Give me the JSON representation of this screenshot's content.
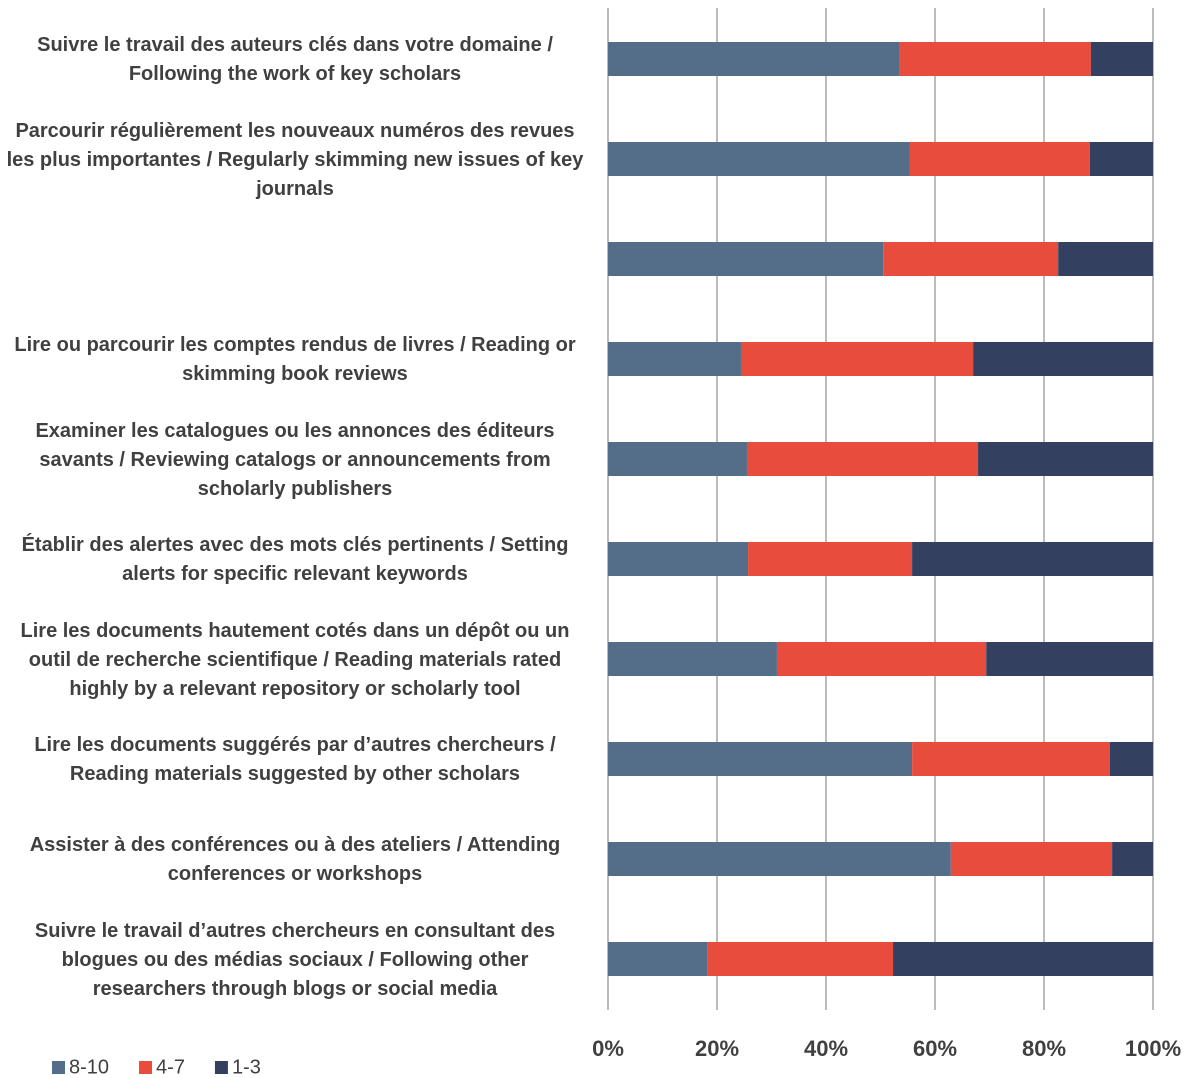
{
  "chart_data": {
    "type": "stacked_bar_horizontal",
    "categories": [
      "Suivre le travail des auteurs clés dans votre domaine / Following the work of key scholars",
      "Parcourir régulièrement les nouveaux numéros des revues les plus importantes / Regularly skimming new issues of key journals",
      null,
      "Lire ou parcourir les comptes rendus de livres / Reading or skimming book reviews",
      "Examiner les catalogues ou les annonces des éditeurs savants / Reviewing catalogs or announcements from scholarly publishers",
      "Établir des alertes avec des mots clés pertinents / Setting alerts for specific relevant keywords",
      "Lire les documents hautement cotés dans un dépôt ou un outil de recherche scientifique / Reading materials rated highly by a relevant repository or scholarly tool",
      "Lire les documents suggérés par d’autres chercheurs / Reading materials suggested by other scholars",
      "Assister à des conférences ou à des ateliers / Attending conferences or workshops",
      "Suivre le travail d’autres chercheurs en consultant des blogues ou des médias sociaux / Following other researchers through blogs or social media"
    ],
    "series": [
      {
        "name": "8-10",
        "color": "#546e8a",
        "values": [
          53.4,
          55.4,
          50.5,
          24.4,
          25.5,
          25.7,
          31.0,
          55.8,
          62.9,
          18.3
        ]
      },
      {
        "name": "4-7",
        "color": "#e84c3d",
        "values": [
          35.2,
          33.0,
          32.1,
          42.6,
          42.4,
          30.1,
          38.4,
          36.3,
          29.6,
          34.0
        ]
      },
      {
        "name": "1-3",
        "color": "#344060",
        "values": [
          11.4,
          11.6,
          17.4,
          33.0,
          32.1,
          44.2,
          30.6,
          7.9,
          7.5,
          47.7
        ]
      }
    ],
    "xlim": [
      0,
      100
    ],
    "xticks": [
      {
        "value": 0,
        "label": "0%"
      },
      {
        "value": 20,
        "label": "20%"
      },
      {
        "value": 40,
        "label": "40%"
      },
      {
        "value": 60,
        "label": "60%"
      },
      {
        "value": 80,
        "label": "80%"
      },
      {
        "value": 100,
        "label": "100%"
      }
    ],
    "grid": true,
    "legend": "bottom-left"
  }
}
